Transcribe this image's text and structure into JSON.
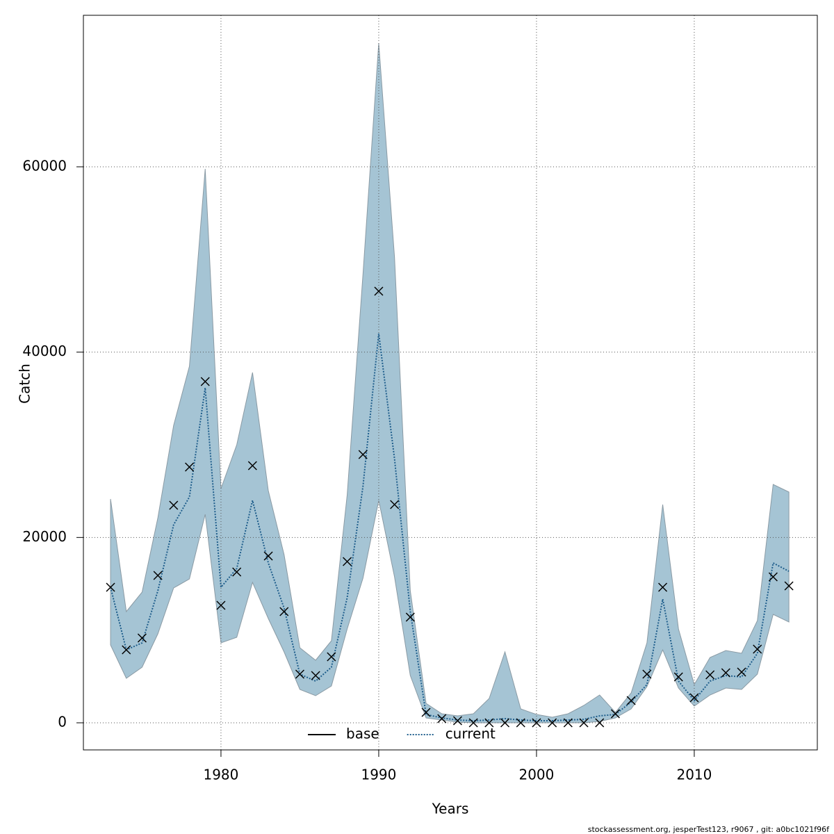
{
  "chart_data": {
    "type": "band-line",
    "x_label": "Years",
    "y_label": "Catch",
    "footer": "stockassessment.org, jesperTest123, r9067 , git: a0bc1021f96f",
    "x": [
      1973,
      1974,
      1975,
      1976,
      1977,
      1978,
      1979,
      1980,
      1981,
      1982,
      1983,
      1984,
      1985,
      1986,
      1987,
      1988,
      1989,
      1990,
      1991,
      1992,
      1993,
      1994,
      1995,
      1996,
      1997,
      1998,
      1999,
      2000,
      2001,
      2002,
      2003,
      2004,
      2005,
      2006,
      2007,
      2008,
      2009,
      2010,
      2011,
      2012,
      2013,
      2014,
      2015,
      2016
    ],
    "observed": [
      14625,
      7875,
      9150,
      15900,
      23475,
      27600,
      36825,
      12675,
      16275,
      27750,
      18000,
      12000,
      5250,
      5100,
      7125,
      17400,
      28950,
      46575,
      23550,
      11400,
      1125,
      450,
      225,
      0,
      0,
      0,
      0,
      0,
      0,
      0,
      0,
      0,
      975,
      2400,
      5250,
      14625,
      4950,
      2700,
      5175,
      5400,
      5475,
      7950,
      15750,
      14775
    ],
    "series": [
      {
        "name": "current",
        "color": "#1f5e8c",
        "values": [
          14625,
          7875,
          8625,
          14250,
          21375,
          24375,
          36150,
          14625,
          16650,
          24000,
          17250,
          12375,
          5250,
          4500,
          6000,
          13500,
          25500,
          42000,
          28500,
          12000,
          900,
          525,
          300,
          225,
          300,
          450,
          300,
          225,
          225,
          300,
          375,
          750,
          900,
          2250,
          4125,
          13350,
          4500,
          2400,
          4500,
          5100,
          4950,
          7500,
          17250,
          16350
        ]
      }
    ],
    "upper": [
      24150,
      12000,
      14100,
      22125,
      32100,
      38475,
      59775,
      25275,
      30000,
      37800,
      25050,
      18150,
      8100,
      6750,
      8850,
      24600,
      48375,
      73350,
      50250,
      14250,
      2100,
      975,
      750,
      975,
      2625,
      7650,
      1500,
      900,
      600,
      975,
      1875,
      3000,
      1125,
      3225,
      8625,
      23550,
      10125,
      4125,
      7050,
      7800,
      7500,
      11025,
      25725,
      24900
    ],
    "lower": [
      8400,
      4800,
      6000,
      9600,
      14550,
      15525,
      22500,
      8625,
      9225,
      15150,
      11250,
      7650,
      3600,
      2925,
      3975,
      10125,
      15600,
      24000,
      15750,
      5100,
      525,
      300,
      75,
      0,
      0,
      0,
      0,
      0,
      0,
      0,
      0,
      150,
      525,
      1500,
      3900,
      7875,
      3750,
      1800,
      3000,
      3750,
      3600,
      5250,
      11700,
      10875
    ],
    "band_color": "#a5c4d4",
    "legend": [
      {
        "name": "base",
        "color": "#000000",
        "dash": "solid"
      },
      {
        "name": "current",
        "color": "#1f5e8c",
        "dash": "dotted"
      }
    ],
    "legend_position": "bottom",
    "xlim": [
      1971.28,
      2017.8
    ],
    "ylim": [
      -2925,
      76350
    ],
    "xticks": [
      1980,
      1990,
      2000,
      2010
    ],
    "yticks": [
      0,
      20000,
      40000,
      60000
    ],
    "grid": true
  }
}
